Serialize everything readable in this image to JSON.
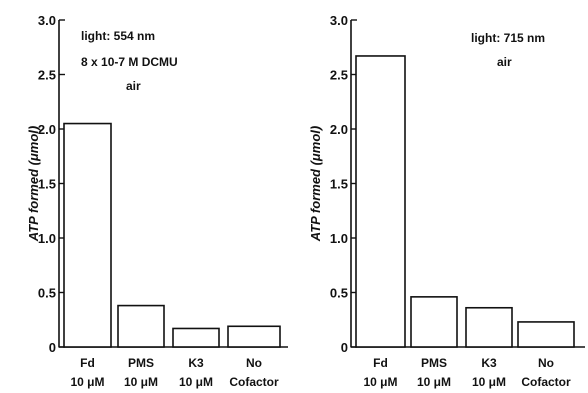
{
  "chart_data": [
    {
      "type": "bar",
      "ylabel": "ATP formed (μmol)",
      "ylim": [
        0,
        3.0
      ],
      "yticks": [
        "0",
        "0.5",
        "1.0",
        "1.5",
        "2.0",
        "2.5",
        "3.0"
      ],
      "categories": [
        {
          "name": "Fd",
          "conc": "10 μM"
        },
        {
          "name": "PMS",
          "conc": "10 μM"
        },
        {
          "name": "K3",
          "conc": "10 μM"
        },
        {
          "name": "No",
          "conc": "Cofactor"
        }
      ],
      "values": [
        2.05,
        0.38,
        0.17,
        0.19
      ],
      "annotations": [
        "light: 554 nm",
        "8 x 10-7 M  DCMU",
        "air"
      ],
      "grid": false,
      "bar_color": "#ffffff",
      "line_color": "#111111"
    },
    {
      "type": "bar",
      "ylabel": "ATP formed (μmol)",
      "ylim": [
        0,
        3.0
      ],
      "yticks": [
        "0",
        "0.5",
        "1.0",
        "1.5",
        "2.0",
        "2.5",
        "3.0"
      ],
      "categories": [
        {
          "name": "Fd",
          "conc": "10 μM"
        },
        {
          "name": "PMS",
          "conc": "10 μM"
        },
        {
          "name": "K3",
          "conc": "10 μM"
        },
        {
          "name": "No",
          "conc": "Cofactor"
        }
      ],
      "values": [
        2.67,
        0.46,
        0.36,
        0.23
      ],
      "annotations": [
        "light: 715 nm",
        "air"
      ],
      "grid": false,
      "bar_color": "#ffffff",
      "line_color": "#111111"
    }
  ]
}
